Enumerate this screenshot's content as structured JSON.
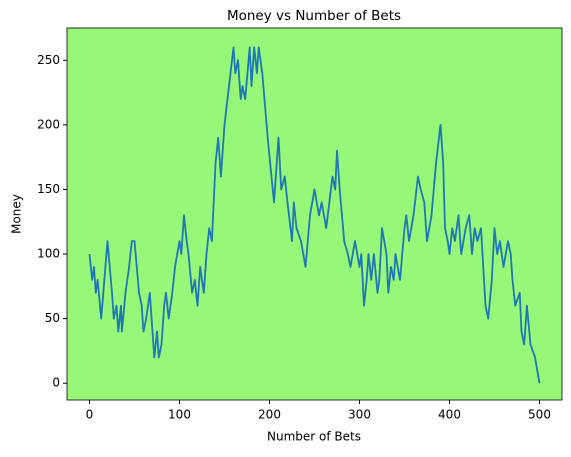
{
  "chart_data": {
    "type": "line",
    "title": "Money vs Number of Bets",
    "x_label": "Number of Bets",
    "y_label": "Money",
    "background": "#96f779",
    "x": [
      0,
      3,
      5,
      7,
      9,
      13,
      20,
      25,
      27,
      30,
      32,
      35,
      36,
      40,
      44,
      47,
      50,
      55,
      58,
      60,
      63,
      67,
      72,
      75,
      77,
      80,
      83,
      85,
      88,
      92,
      95,
      100,
      102,
      105,
      108,
      110,
      114,
      117,
      120,
      123,
      127,
      130,
      133,
      136,
      140,
      143,
      146,
      150,
      160,
      162,
      165,
      168,
      170,
      173,
      178,
      180,
      183,
      186,
      188,
      192,
      198,
      205,
      210,
      213,
      217,
      220,
      225,
      227,
      230,
      235,
      240,
      245,
      250,
      255,
      258,
      263,
      270,
      273,
      275,
      278,
      283,
      287,
      290,
      295,
      300,
      302,
      305,
      308,
      310,
      313,
      316,
      320,
      322,
      325,
      330,
      332,
      335,
      338,
      340,
      345,
      350,
      352,
      355,
      360,
      365,
      368,
      372,
      375,
      380,
      385,
      390,
      393,
      395,
      398,
      400,
      403,
      406,
      410,
      413,
      418,
      422,
      425,
      428,
      431,
      435,
      440,
      443,
      447,
      450,
      453,
      456,
      460,
      465,
      468,
      470,
      473,
      478,
      480,
      483,
      486,
      490,
      495,
      500
    ],
    "series": [
      {
        "name": "Money",
        "color": "#1f77b4",
        "values": [
          100,
          80,
          90,
          70,
          80,
          50,
          110,
          70,
          50,
          60,
          40,
          60,
          40,
          70,
          90,
          110,
          110,
          70,
          60,
          40,
          50,
          70,
          20,
          40,
          20,
          30,
          60,
          70,
          50,
          70,
          90,
          110,
          100,
          130,
          110,
          100,
          70,
          80,
          60,
          90,
          70,
          100,
          120,
          110,
          170,
          190,
          160,
          200,
          260,
          240,
          250,
          220,
          230,
          220,
          260,
          230,
          260,
          240,
          260,
          240,
          190,
          140,
          190,
          150,
          160,
          140,
          110,
          140,
          120,
          110,
          90,
          130,
          150,
          130,
          140,
          120,
          160,
          150,
          180,
          150,
          110,
          100,
          90,
          110,
          90,
          100,
          60,
          80,
          100,
          80,
          100,
          70,
          80,
          120,
          100,
          70,
          90,
          80,
          100,
          80,
          120,
          130,
          110,
          130,
          160,
          150,
          140,
          110,
          130,
          170,
          200,
          170,
          120,
          110,
          100,
          120,
          110,
          130,
          100,
          120,
          130,
          100,
          120,
          110,
          120,
          60,
          50,
          80,
          120,
          100,
          110,
          90,
          110,
          100,
          80,
          60,
          70,
          40,
          30,
          60,
          30,
          20,
          0
        ]
      }
    ],
    "xlim": [
      -25,
      525
    ],
    "ylim": [
      -13,
      275
    ],
    "xticks": [
      0,
      100,
      200,
      300,
      400,
      500
    ],
    "yticks": [
      0,
      50,
      100,
      150,
      200,
      250
    ]
  }
}
